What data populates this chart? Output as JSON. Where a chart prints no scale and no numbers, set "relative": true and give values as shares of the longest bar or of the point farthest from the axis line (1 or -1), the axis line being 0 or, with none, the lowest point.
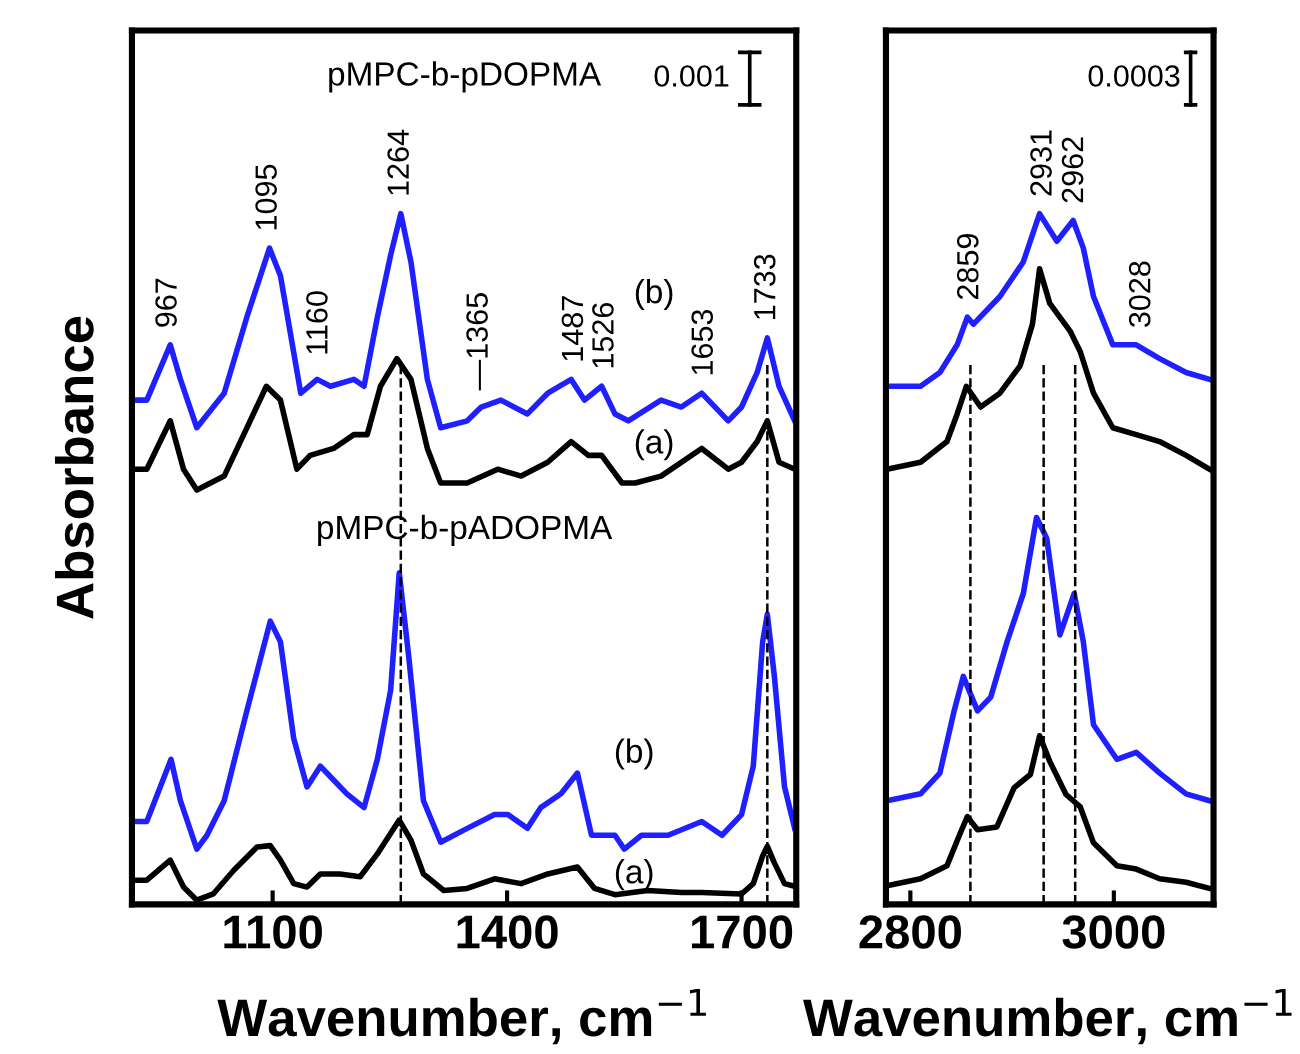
{
  "chart_data": [
    {
      "type": "line",
      "relative": true,
      "xlabel": "Wavenumber, cm$^{−1}$",
      "ylabel": "Absorbance",
      "xlim": [
        920,
        1770
      ],
      "xticks": [
        1100,
        1400,
        1700
      ],
      "tick_labels": "x",
      "marker": "none",
      "line_style": "solid",
      "series": [
        {
          "color": "#1f1fff",
          "x": [
            922,
            939,
            969,
            982,
            1003,
            1038,
            1067,
            1096,
            1110,
            1136,
            1157,
            1174,
            1204,
            1217,
            1234,
            1251,
            1264,
            1277,
            1298,
            1315,
            1349,
            1367,
            1392,
            1426,
            1452,
            1482,
            1499,
            1521,
            1538,
            1555,
            1597,
            1623,
            1649,
            1683,
            1700,
            1720,
            1733,
            1748,
            1768
          ],
          "values": [
            0.73,
            0.73,
            0.81,
            0.76,
            0.69,
            0.74,
            0.85,
            0.95,
            0.91,
            0.74,
            0.76,
            0.75,
            0.76,
            0.75,
            0.85,
            0.94,
            1.0,
            0.93,
            0.76,
            0.69,
            0.7,
            0.72,
            0.73,
            0.71,
            0.74,
            0.76,
            0.73,
            0.75,
            0.71,
            0.7,
            0.73,
            0.72,
            0.74,
            0.7,
            0.72,
            0.77,
            0.82,
            0.75,
            0.7
          ]
        },
        {
          "color": "#000000",
          "x": [
            922,
            939,
            969,
            986,
            1003,
            1038,
            1063,
            1092,
            1110,
            1131,
            1148,
            1178,
            1204,
            1221,
            1238,
            1259,
            1277,
            1298,
            1315,
            1349,
            1388,
            1418,
            1452,
            1482,
            1504,
            1521,
            1547,
            1564,
            1597,
            1649,
            1683,
            1700,
            1720,
            1733,
            1748,
            1768
          ],
          "values": [
            0.63,
            0.63,
            0.7,
            0.63,
            0.6,
            0.62,
            0.68,
            0.75,
            0.73,
            0.63,
            0.65,
            0.66,
            0.68,
            0.68,
            0.75,
            0.79,
            0.76,
            0.66,
            0.61,
            0.61,
            0.63,
            0.62,
            0.64,
            0.67,
            0.65,
            0.65,
            0.61,
            0.61,
            0.62,
            0.66,
            0.63,
            0.64,
            0.67,
            0.7,
            0.64,
            0.63
          ]
        },
        {
          "color": "#1f1fff",
          "x": [
            922,
            939,
            970,
            982,
            1003,
            1016,
            1038,
            1067,
            1097,
            1110,
            1127,
            1144,
            1161,
            1178,
            1195,
            1217,
            1234,
            1251,
            1262,
            1274,
            1293,
            1315,
            1349,
            1384,
            1401,
            1426,
            1443,
            1469,
            1490,
            1508,
            1538,
            1550,
            1572,
            1606,
            1649,
            1675,
            1700,
            1715,
            1727,
            1733,
            1742,
            1755,
            1768
          ],
          "values": [
            0.12,
            0.12,
            0.21,
            0.15,
            0.08,
            0.1,
            0.15,
            0.28,
            0.41,
            0.38,
            0.24,
            0.17,
            0.2,
            0.18,
            0.16,
            0.14,
            0.21,
            0.31,
            0.48,
            0.36,
            0.15,
            0.09,
            0.11,
            0.13,
            0.13,
            0.11,
            0.14,
            0.16,
            0.19,
            0.1,
            0.1,
            0.08,
            0.1,
            0.1,
            0.12,
            0.1,
            0.13,
            0.2,
            0.38,
            0.42,
            0.33,
            0.17,
            0.11
          ]
        },
        {
          "color": "#000000",
          "x": [
            922,
            939,
            969,
            986,
            1003,
            1024,
            1050,
            1080,
            1097,
            1110,
            1127,
            1144,
            1161,
            1186,
            1212,
            1234,
            1262,
            1277,
            1293,
            1319,
            1349,
            1384,
            1418,
            1452,
            1490,
            1512,
            1538,
            1580,
            1623,
            1649,
            1700,
            1715,
            1727,
            1733,
            1742,
            1755,
            1768
          ],
          "values": [
            0.035,
            0.035,
            0.064,
            0.025,
            0.006,
            0.015,
            0.049,
            0.083,
            0.085,
            0.064,
            0.03,
            0.025,
            0.044,
            0.044,
            0.04,
            0.073,
            0.122,
            0.093,
            0.044,
            0.02,
            0.023,
            0.037,
            0.03,
            0.044,
            0.054,
            0.023,
            0.014,
            0.02,
            0.017,
            0.017,
            0.015,
            0.03,
            0.07,
            0.084,
            0.06,
            0.03,
            0.026
          ]
        }
      ],
      "ref_lines": [
        {
          "axis": "x",
          "value": 1264,
          "color": "#000000",
          "line_style": "dashed"
        },
        {
          "axis": "x",
          "value": 1733,
          "color": "#000000",
          "line_style": "dashed"
        }
      ],
      "annotations": [
        "pMPC-b-pDOPMA",
        "0.001",
        {
          "text": "967",
          "x": 967,
          "y": 0.81
        },
        {
          "text": "1095",
          "x": 1095,
          "y": 0.95
        },
        {
          "text": "1160",
          "x": 1160,
          "y": 0.77
        },
        {
          "text": "1264",
          "x": 1264,
          "y": 1.0
        },
        {
          "text": "—1365",
          "x": 1365,
          "y": 0.72
        },
        {
          "text": "1487",
          "x": 1487,
          "y": 0.76
        },
        {
          "text": "1526",
          "x": 1526,
          "y": 0.75
        },
        {
          "text": "1653",
          "x": 1653,
          "y": 0.74
        },
        {
          "text": "1733",
          "x": 1733,
          "y": 0.82
        },
        "(b)",
        "(a)",
        "pMPC-b-pADOPMA",
        "(b)",
        "(a)"
      ]
    },
    {
      "type": "line",
      "relative": true,
      "xlabel": "Wavenumber, cm$^{−1}$",
      "xlim": [
        2776,
        3098
      ],
      "xticks": [
        2800,
        3000
      ],
      "tick_labels": "x",
      "marker": "none",
      "line_style": "solid",
      "series": [
        {
          "color": "#1f1fff",
          "x": [
            2777,
            2810,
            2829,
            2846,
            2856,
            2862,
            2888,
            2911,
            2927,
            2944,
            2960,
            2970,
            2980,
            2999,
            3022,
            3045,
            3071,
            3094
          ],
          "values": [
            0.75,
            0.75,
            0.77,
            0.81,
            0.85,
            0.84,
            0.88,
            0.93,
            1.0,
            0.96,
            0.99,
            0.95,
            0.88,
            0.81,
            0.81,
            0.79,
            0.77,
            0.76
          ]
        },
        {
          "color": "#000000",
          "x": [
            2777,
            2810,
            2836,
            2846,
            2855,
            2869,
            2888,
            2908,
            2920,
            2927,
            2937,
            2957,
            2967,
            2980,
            2999,
            3022,
            3045,
            3071,
            3094
          ],
          "values": [
            0.63,
            0.64,
            0.67,
            0.71,
            0.75,
            0.72,
            0.74,
            0.78,
            0.84,
            0.92,
            0.87,
            0.83,
            0.8,
            0.74,
            0.69,
            0.68,
            0.67,
            0.65,
            0.63
          ]
        },
        {
          "color": "#1f1fff",
          "x": [
            2777,
            2810,
            2829,
            2843,
            2852,
            2866,
            2879,
            2895,
            2911,
            2924,
            2934,
            2947,
            2961,
            2970,
            2980,
            3003,
            3022,
            3045,
            3071,
            3094
          ],
          "values": [
            0.15,
            0.16,
            0.19,
            0.28,
            0.33,
            0.28,
            0.3,
            0.38,
            0.45,
            0.56,
            0.53,
            0.39,
            0.45,
            0.38,
            0.26,
            0.21,
            0.22,
            0.19,
            0.16,
            0.15
          ]
        },
        {
          "color": "#000000",
          "x": [
            2777,
            2810,
            2836,
            2849,
            2856,
            2866,
            2885,
            2902,
            2918,
            2927,
            2937,
            2953,
            2967,
            2980,
            3003,
            3022,
            3045,
            3071,
            3094
          ],
          "values": [
            0.027,
            0.037,
            0.056,
            0.103,
            0.127,
            0.108,
            0.112,
            0.169,
            0.188,
            0.244,
            0.207,
            0.159,
            0.141,
            0.089,
            0.056,
            0.051,
            0.037,
            0.032,
            0.023
          ]
        }
      ],
      "ref_lines": [
        {
          "axis": "x",
          "value": 2859,
          "color": "#000000",
          "line_style": "dashed"
        },
        {
          "axis": "x",
          "value": 2931,
          "color": "#000000",
          "line_style": "dashed"
        },
        {
          "axis": "x",
          "value": 2962,
          "color": "#000000",
          "line_style": "dashed"
        }
      ],
      "annotations": [
        "0.0003",
        {
          "text": "2859",
          "x": 2859,
          "y": 0.85
        },
        {
          "text": "2931",
          "x": 2931,
          "y": 1.0
        },
        {
          "text": "2962",
          "x": 2962,
          "y": 0.99
        },
        {
          "text": "3028",
          "x": 3028,
          "y": 0.81
        }
      ]
    }
  ]
}
